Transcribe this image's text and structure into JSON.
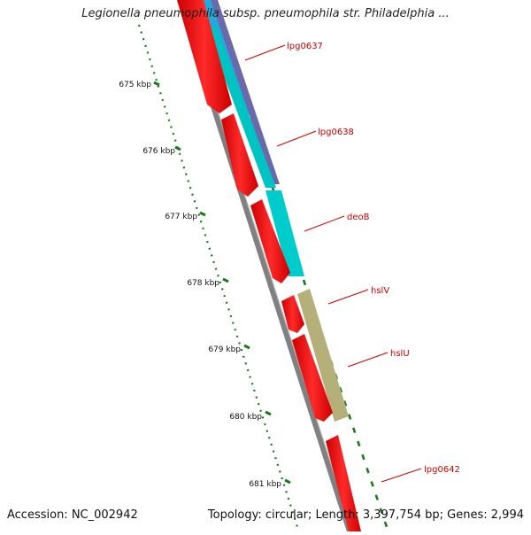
{
  "title": "Legionella pneumophila subsp. pneumophila str. Philadelphia ...",
  "footer": {
    "accession": "Accession: NC_002942",
    "summary": "Topology: circular; Length: 3,397,754 bp; Genes: 2,994"
  },
  "ticks": [
    {
      "label": "675 kbp"
    },
    {
      "label": "676 kbp"
    },
    {
      "label": "677 kbp"
    },
    {
      "label": "678 kbp"
    },
    {
      "label": "679 kbp"
    },
    {
      "label": "680 kbp"
    },
    {
      "label": "681 kbp"
    }
  ],
  "genes": [
    {
      "label": "lpg0637"
    },
    {
      "label": "lpg0638"
    },
    {
      "label": "deoB"
    },
    {
      "label": "hslV"
    },
    {
      "label": "hslU"
    },
    {
      "label": "lpg0642"
    }
  ],
  "colors": {
    "cds": "#ff0000",
    "label": "#cc0000",
    "backbone": "#808080",
    "tick": "#1a7a1a",
    "cyan": "#00cccc",
    "purple": "#5a5a9a",
    "khaki": "#b5b07a",
    "skyblue": "#22aadd"
  }
}
